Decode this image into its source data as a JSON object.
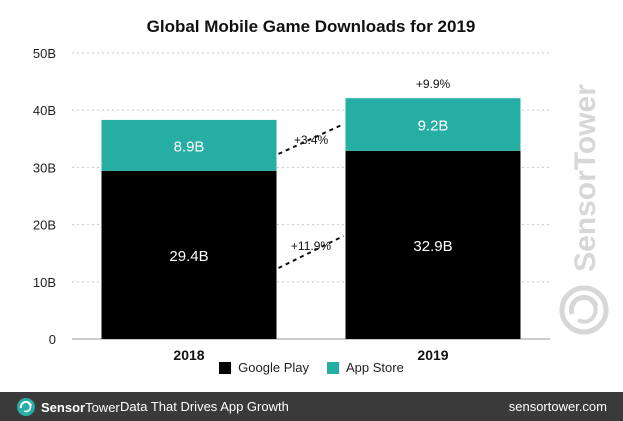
{
  "colors": {
    "google_play": "#000000",
    "app_store": "#26aea4",
    "footer_bg": "#3a3a3a",
    "grid": "#c8c8c8",
    "watermark": "#d7d7d7"
  },
  "chart_data": {
    "type": "bar",
    "stacked": true,
    "title": "Global Mobile Game Downloads for 2019",
    "categories": [
      "2018",
      "2019"
    ],
    "series": [
      {
        "name": "Google Play",
        "values": [
          29.4,
          32.9
        ],
        "labels": [
          "29.4B",
          "32.9B"
        ],
        "color": "#000000"
      },
      {
        "name": "App Store",
        "values": [
          8.9,
          9.2
        ],
        "labels": [
          "8.9B",
          "9.2B"
        ],
        "color": "#26aea4"
      }
    ],
    "ylim": [
      0,
      50
    ],
    "yticks": [
      0,
      10,
      20,
      30,
      40,
      50
    ],
    "ytick_labels": [
      "0",
      "10B",
      "20B",
      "30B",
      "40B",
      "50B"
    ],
    "grid": true,
    "legend_position": "bottom-center",
    "annotations": {
      "google_play_growth": "+11.9%",
      "app_store_growth": "+3.4%",
      "total_growth": "+9.9%"
    }
  },
  "legend": {
    "items": [
      {
        "label": "Google Play",
        "color": "#000000"
      },
      {
        "label": "App Store",
        "color": "#26aea4"
      }
    ]
  },
  "watermark": {
    "text": "SensorTower",
    "icon": "sensortower-logo-icon"
  },
  "footer": {
    "brand_bold": "Sensor",
    "brand_rest": "Tower",
    "tagline": "Data That Drives App Growth",
    "site": "sensortower.com",
    "icon": "sensortower-logo-icon"
  }
}
